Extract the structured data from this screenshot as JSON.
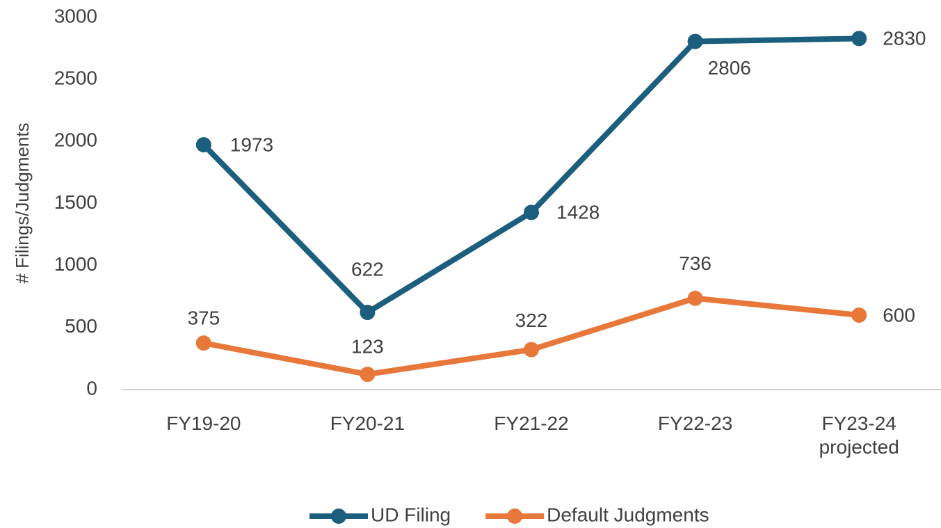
{
  "chart_data": {
    "type": "line",
    "y_axis_label": "# Filings/Judgments",
    "categories": [
      "FY19-20",
      "FY20-21",
      "FY21-22",
      "FY22-23",
      "FY23-24 projected"
    ],
    "series": [
      {
        "name": "UD Filing",
        "color": "#1b5e7e",
        "values": [
          1973,
          622,
          1428,
          2806,
          2830
        ]
      },
      {
        "name": "Default Judgments",
        "color": "#e8773a",
        "values": [
          375,
          123,
          322,
          736,
          600
        ]
      }
    ],
    "ylim": [
      0,
      3000
    ],
    "yticks": [
      0,
      500,
      1000,
      1500,
      2000,
      2500,
      3000
    ],
    "grid": false,
    "legend": "bottom",
    "data_labels": true
  }
}
